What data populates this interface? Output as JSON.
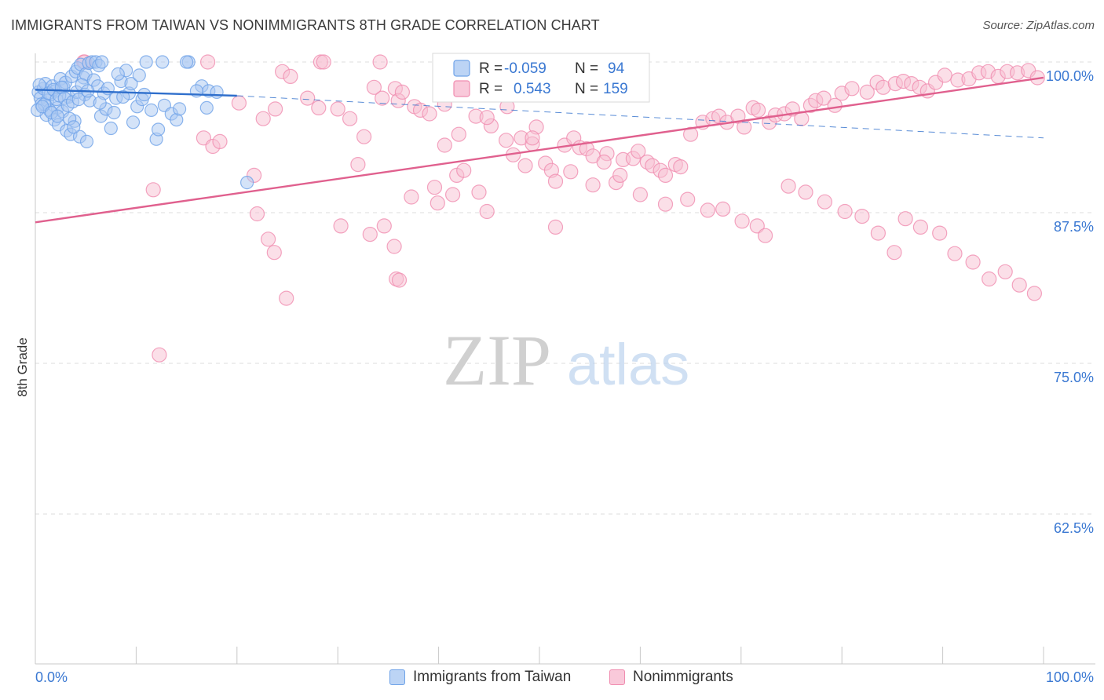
{
  "title": "IMMIGRANTS FROM TAIWAN VS NONIMMIGRANTS 8TH GRADE CORRELATION CHART",
  "source": "Source: ZipAtlas.com",
  "watermark": {
    "zip": "ZIP",
    "atlas": "atlas"
  },
  "chart_data": {
    "type": "scatter",
    "xlabel": "",
    "ylabel": "8th Grade",
    "xlim": [
      0,
      100
    ],
    "ylim": [
      50,
      100
    ],
    "x_tick_labels": [
      "0.0%",
      "100.0%"
    ],
    "y_ticks": [
      100,
      87.5,
      75,
      62.5
    ],
    "y_tick_labels": [
      "100.0%",
      "87.5%",
      "75.0%",
      "62.5%"
    ],
    "grid": "horizontal-dashed",
    "legend_top": {
      "r_label": "R =",
      "n_label": "N =",
      "entries": [
        {
          "r": "-0.059",
          "n": "94"
        },
        {
          "r": "0.543",
          "n": "159"
        }
      ]
    },
    "series": [
      {
        "name": "Immigrants from Taiwan",
        "color": "#6fa3e8",
        "line_color": "#2f6fcc",
        "trend": {
          "x0": 0,
          "y0": 97.7,
          "x1": 20,
          "y1": 97.2,
          "dash_to_x": 100,
          "dash_to_y": 93.7
        },
        "points": [
          [
            0.3,
            97.5
          ],
          [
            0.5,
            97.0
          ],
          [
            0.6,
            96.5
          ],
          [
            0.8,
            97.8
          ],
          [
            1.0,
            98.2
          ],
          [
            1.2,
            96.8
          ],
          [
            1.5,
            97.3
          ],
          [
            1.7,
            98.0
          ],
          [
            2.0,
            97.6
          ],
          [
            2.2,
            96.2
          ],
          [
            2.5,
            98.6
          ],
          [
            2.8,
            97.9
          ],
          [
            3.0,
            98.3
          ],
          [
            3.3,
            97.1
          ],
          [
            3.6,
            98.8
          ],
          [
            4.0,
            99.2
          ],
          [
            4.2,
            99.5
          ],
          [
            4.5,
            99.8
          ],
          [
            4.8,
            98.7
          ],
          [
            5.0,
            99.0
          ],
          [
            5.3,
            99.9
          ],
          [
            5.6,
            100.0
          ],
          [
            6.0,
            100.0
          ],
          [
            6.3,
            99.7
          ],
          [
            6.6,
            100.0
          ],
          [
            1.1,
            95.6
          ],
          [
            1.4,
            96.0
          ],
          [
            1.9,
            95.2
          ],
          [
            2.3,
            94.8
          ],
          [
            2.7,
            95.9
          ],
          [
            3.1,
            94.3
          ],
          [
            3.5,
            94.0
          ],
          [
            3.9,
            95.1
          ],
          [
            4.4,
            93.8
          ],
          [
            5.1,
            93.4
          ],
          [
            6.5,
            95.5
          ],
          [
            7.0,
            96.1
          ],
          [
            7.5,
            94.5
          ],
          [
            8.0,
            97.0
          ],
          [
            8.5,
            98.4
          ],
          [
            9.0,
            99.3
          ],
          [
            9.3,
            97.4
          ],
          [
            9.7,
            95.0
          ],
          [
            10.1,
            96.3
          ],
          [
            10.6,
            96.9
          ],
          [
            11.0,
            100.0
          ],
          [
            12.0,
            93.6
          ],
          [
            12.2,
            94.4
          ],
          [
            12.6,
            100.0
          ],
          [
            15.2,
            100.0
          ],
          [
            16.5,
            98.0
          ],
          [
            17.0,
            96.2
          ],
          [
            17.2,
            97.6
          ],
          [
            0.4,
            98.1
          ],
          [
            0.9,
            96.5
          ],
          [
            1.3,
            97.4
          ],
          [
            1.8,
            97.7
          ],
          [
            2.1,
            96.9
          ],
          [
            2.4,
            97.2
          ],
          [
            2.6,
            97.9
          ],
          [
            2.9,
            97.0
          ],
          [
            3.2,
            96.4
          ],
          [
            3.4,
            95.3
          ],
          [
            3.7,
            96.7
          ],
          [
            4.1,
            97.5
          ],
          [
            4.6,
            98.1
          ],
          [
            4.9,
            97.3
          ],
          [
            5.4,
            96.8
          ],
          [
            5.8,
            98.5
          ],
          [
            6.2,
            98.0
          ],
          [
            6.8,
            97.4
          ],
          [
            7.2,
            97.8
          ],
          [
            7.8,
            95.8
          ],
          [
            8.2,
            99.0
          ],
          [
            8.7,
            97.1
          ],
          [
            9.5,
            98.2
          ],
          [
            10.3,
            98.9
          ],
          [
            10.8,
            97.3
          ],
          [
            11.5,
            96.0
          ],
          [
            12.8,
            96.4
          ],
          [
            13.5,
            95.7
          ],
          [
            14.0,
            95.2
          ],
          [
            14.3,
            96.1
          ],
          [
            15.0,
            100.0
          ],
          [
            16.0,
            97.6
          ],
          [
            18.0,
            97.5
          ],
          [
            0.2,
            96.0
          ],
          [
            0.7,
            96.3
          ],
          [
            1.6,
            95.8
          ],
          [
            2.2,
            95.5
          ],
          [
            3.8,
            94.6
          ],
          [
            4.3,
            96.9
          ],
          [
            5.2,
            97.6
          ],
          [
            6.4,
            96.6
          ],
          [
            21.0,
            90.0
          ]
        ]
      },
      {
        "name": "Nonimmigrants",
        "color": "#f08db0",
        "line_color": "#e0608e",
        "trend": {
          "x0": 0,
          "y0": 86.7,
          "x1": 100,
          "y1": 98.7
        },
        "points": [
          [
            4.8,
            100.0
          ],
          [
            4.9,
            100.0
          ],
          [
            17.1,
            100.0
          ],
          [
            28.3,
            100.0
          ],
          [
            28.6,
            100.0
          ],
          [
            34.2,
            100.0
          ],
          [
            11.7,
            89.4
          ],
          [
            21.7,
            90.6
          ],
          [
            22.0,
            87.4
          ],
          [
            23.1,
            85.3
          ],
          [
            24.9,
            80.4
          ],
          [
            23.7,
            84.2
          ],
          [
            30.3,
            86.4
          ],
          [
            32.0,
            91.5
          ],
          [
            32.6,
            93.8
          ],
          [
            33.2,
            85.7
          ],
          [
            34.6,
            86.4
          ],
          [
            35.6,
            84.7
          ],
          [
            35.8,
            82.0
          ],
          [
            36.1,
            81.9
          ],
          [
            37.3,
            88.8
          ],
          [
            39.6,
            89.6
          ],
          [
            39.9,
            88.3
          ],
          [
            40.6,
            93.1
          ],
          [
            41.4,
            89.0
          ],
          [
            41.8,
            90.6
          ],
          [
            42.5,
            91.0
          ],
          [
            44.0,
            89.2
          ],
          [
            44.8,
            87.6
          ],
          [
            45.2,
            94.7
          ],
          [
            46.7,
            93.5
          ],
          [
            47.4,
            92.3
          ],
          [
            48.2,
            93.7
          ],
          [
            49.3,
            93.2
          ],
          [
            49.7,
            94.6
          ],
          [
            50.6,
            91.6
          ],
          [
            51.2,
            91.0
          ],
          [
            51.6,
            86.3
          ],
          [
            52.5,
            93.1
          ],
          [
            53.4,
            93.7
          ],
          [
            54.0,
            92.9
          ],
          [
            54.7,
            92.8
          ],
          [
            55.3,
            92.2
          ],
          [
            56.7,
            92.4
          ],
          [
            57.6,
            90.0
          ],
          [
            58.3,
            91.9
          ],
          [
            59.3,
            92.0
          ],
          [
            59.8,
            92.6
          ],
          [
            60.7,
            91.7
          ],
          [
            61.2,
            91.4
          ],
          [
            62.0,
            91.0
          ],
          [
            62.5,
            90.6
          ],
          [
            63.5,
            91.5
          ],
          [
            64.0,
            91.3
          ],
          [
            65.0,
            94.0
          ],
          [
            66.2,
            95.0
          ],
          [
            67.2,
            95.3
          ],
          [
            67.8,
            95.5
          ],
          [
            68.6,
            95.0
          ],
          [
            69.7,
            95.5
          ],
          [
            70.3,
            94.6
          ],
          [
            71.2,
            96.2
          ],
          [
            71.7,
            96.0
          ],
          [
            72.8,
            95.0
          ],
          [
            73.4,
            95.6
          ],
          [
            74.3,
            95.7
          ],
          [
            75.1,
            96.1
          ],
          [
            76.0,
            95.3
          ],
          [
            76.9,
            96.4
          ],
          [
            77.4,
            96.8
          ],
          [
            78.2,
            97.0
          ],
          [
            79.3,
            96.4
          ],
          [
            80.0,
            97.4
          ],
          [
            81.0,
            97.8
          ],
          [
            82.5,
            97.5
          ],
          [
            83.5,
            98.3
          ],
          [
            84.1,
            97.9
          ],
          [
            85.3,
            98.2
          ],
          [
            86.1,
            98.4
          ],
          [
            86.9,
            98.2
          ],
          [
            87.7,
            97.9
          ],
          [
            88.5,
            97.6
          ],
          [
            89.3,
            98.3
          ],
          [
            90.2,
            98.9
          ],
          [
            91.5,
            98.5
          ],
          [
            92.6,
            98.6
          ],
          [
            93.6,
            99.1
          ],
          [
            94.5,
            99.2
          ],
          [
            95.5,
            98.8
          ],
          [
            96.4,
            99.2
          ],
          [
            97.4,
            99.1
          ],
          [
            98.5,
            99.3
          ],
          [
            99.4,
            98.7
          ],
          [
            12.3,
            75.7
          ],
          [
            16.7,
            93.7
          ],
          [
            17.6,
            93.0
          ],
          [
            18.3,
            93.4
          ],
          [
            20.2,
            96.6
          ],
          [
            22.6,
            95.3
          ],
          [
            23.8,
            96.1
          ],
          [
            24.5,
            99.2
          ],
          [
            25.3,
            98.8
          ],
          [
            27.0,
            97.0
          ],
          [
            28.1,
            96.2
          ],
          [
            30.0,
            96.1
          ],
          [
            31.2,
            95.3
          ],
          [
            33.6,
            97.9
          ],
          [
            34.4,
            97.0
          ],
          [
            35.7,
            97.8
          ],
          [
            36.0,
            96.8
          ],
          [
            36.4,
            97.5
          ],
          [
            37.6,
            96.3
          ],
          [
            38.2,
            96.0
          ],
          [
            39.1,
            95.7
          ],
          [
            40.6,
            96.5
          ],
          [
            42.0,
            94.0
          ],
          [
            43.7,
            95.5
          ],
          [
            44.8,
            95.4
          ],
          [
            46.8,
            96.3
          ],
          [
            48.6,
            91.4
          ],
          [
            49.3,
            93.7
          ],
          [
            51.6,
            90.1
          ],
          [
            53.1,
            90.9
          ],
          [
            55.3,
            89.8
          ],
          [
            56.4,
            91.7
          ],
          [
            58.0,
            90.6
          ],
          [
            60.0,
            89.0
          ],
          [
            62.5,
            88.2
          ],
          [
            64.7,
            88.6
          ],
          [
            66.7,
            87.7
          ],
          [
            68.2,
            87.8
          ],
          [
            70.1,
            86.8
          ],
          [
            71.6,
            86.4
          ],
          [
            72.4,
            85.6
          ],
          [
            74.7,
            89.7
          ],
          [
            76.4,
            89.2
          ],
          [
            78.3,
            88.4
          ],
          [
            80.3,
            87.6
          ],
          [
            82.0,
            87.2
          ],
          [
            83.6,
            85.8
          ],
          [
            85.2,
            84.2
          ],
          [
            86.3,
            87.0
          ],
          [
            87.8,
            86.3
          ],
          [
            89.7,
            85.8
          ],
          [
            91.2,
            84.1
          ],
          [
            93.0,
            83.4
          ],
          [
            94.6,
            82.0
          ],
          [
            96.2,
            82.6
          ],
          [
            97.6,
            81.5
          ],
          [
            99.1,
            80.8
          ]
        ]
      }
    ]
  },
  "bottom_legend": [
    {
      "label": "Immigrants from Taiwan"
    },
    {
      "label": "Nonimmigrants"
    }
  ]
}
